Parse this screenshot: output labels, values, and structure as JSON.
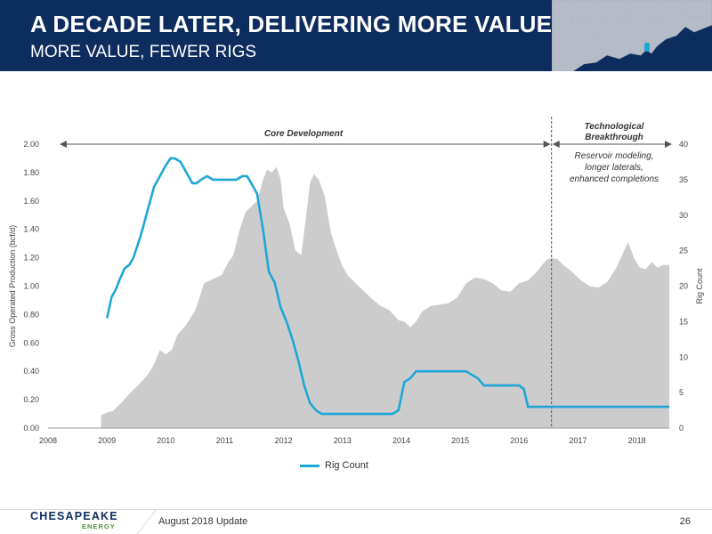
{
  "header": {
    "title": "A DECADE LATER, DELIVERING MORE VALUE",
    "subtitle": "MORE VALUE, FEWER RIGS"
  },
  "colors": {
    "header_bg": "#0d2d5e",
    "area_fill": "#cccccc",
    "rig_line": "#1ea7d6",
    "map_land": "#c8ccd3",
    "map_marker": "#1ea7d6",
    "logo_green": "#4e8f3a"
  },
  "chart_data": {
    "type": "area+line",
    "x_axis": {
      "ticks": [
        "2008",
        "2009",
        "2010",
        "2011",
        "2012",
        "2013",
        "2014",
        "2015",
        "2016",
        "2017",
        "2018"
      ],
      "range": [
        2008.0,
        2018.55
      ]
    },
    "y_left": {
      "label": "Gross Operated Production (bcf/d)",
      "range": [
        0,
        2.0
      ],
      "ticks": [
        "0.00",
        "0.20",
        "0.40",
        "0.60",
        "0.80",
        "1.00",
        "1.20",
        "1.40",
        "1.60",
        "1.80",
        "2.00"
      ]
    },
    "y_right": {
      "label": "Rig Count",
      "range": [
        0,
        40
      ],
      "ticks": [
        "0",
        "5",
        "10",
        "15",
        "20",
        "25",
        "30",
        "35",
        "40"
      ]
    },
    "annotations": {
      "core_development": "Core Development",
      "tech_title_line1": "Technological",
      "tech_title_line2": "Breakthrough",
      "tech_note_line1": "Reservoir modeling,",
      "tech_note_line2": "longer laterals,",
      "tech_note_line3": "enhanced completions",
      "divider_x": 2016.55
    },
    "legend": "Rig Count",
    "series": [
      {
        "axis": "left",
        "kind": "area",
        "x": [
          2008.9,
          2009.0,
          2009.1,
          2009.25,
          2009.4,
          2009.55,
          2009.7,
          2009.8,
          2009.9,
          2010.0,
          2010.1,
          2010.2,
          2010.35,
          2010.5,
          2010.65,
          2010.8,
          2010.95,
          2011.05,
          2011.15,
          2011.25,
          2011.35,
          2011.45,
          2011.55,
          2011.65,
          2011.72,
          2011.8,
          2011.88,
          2011.95,
          2012.0,
          2012.1,
          2012.2,
          2012.3,
          2012.4,
          2012.45,
          2012.52,
          2012.6,
          2012.7,
          2012.8,
          2012.9,
          2013.0,
          2013.1,
          2013.2,
          2013.35,
          2013.5,
          2013.65,
          2013.8,
          2013.95,
          2014.05,
          2014.15,
          2014.25,
          2014.35,
          2014.5,
          2014.65,
          2014.8,
          2014.95,
          2015.1,
          2015.25,
          2015.4,
          2015.55,
          2015.7,
          2015.85,
          2016.0,
          2016.15,
          2016.3,
          2016.45,
          2016.55,
          2016.65,
          2016.75,
          2016.9,
          2017.05,
          2017.2,
          2017.35,
          2017.5,
          2017.65,
          2017.75,
          2017.85,
          2017.95,
          2018.05,
          2018.15,
          2018.25,
          2018.35,
          2018.45,
          2018.55
        ],
        "values": [
          0.09,
          0.11,
          0.12,
          0.18,
          0.25,
          0.31,
          0.38,
          0.45,
          0.55,
          0.52,
          0.55,
          0.66,
          0.73,
          0.83,
          1.02,
          1.05,
          1.08,
          1.16,
          1.22,
          1.39,
          1.52,
          1.56,
          1.6,
          1.75,
          1.82,
          1.8,
          1.84,
          1.75,
          1.55,
          1.44,
          1.25,
          1.22,
          1.55,
          1.73,
          1.79,
          1.75,
          1.63,
          1.38,
          1.25,
          1.14,
          1.07,
          1.03,
          0.97,
          0.91,
          0.86,
          0.83,
          0.76,
          0.75,
          0.71,
          0.75,
          0.82,
          0.86,
          0.87,
          0.88,
          0.92,
          1.02,
          1.06,
          1.05,
          1.02,
          0.97,
          0.96,
          1.02,
          1.04,
          1.1,
          1.18,
          1.2,
          1.19,
          1.15,
          1.1,
          1.04,
          1.0,
          0.99,
          1.03,
          1.13,
          1.22,
          1.31,
          1.2,
          1.13,
          1.12,
          1.17,
          1.13,
          1.15,
          1.15
        ]
      },
      {
        "name": "Rig Count",
        "axis": "right",
        "kind": "line",
        "x": [
          2009.0,
          2009.08,
          2009.15,
          2009.22,
          2009.3,
          2009.38,
          2009.45,
          2009.55,
          2009.62,
          2009.7,
          2009.8,
          2009.9,
          2010.0,
          2010.08,
          2010.15,
          2010.25,
          2010.35,
          2010.45,
          2010.52,
          2010.6,
          2010.7,
          2010.8,
          2010.9,
          2011.0,
          2011.1,
          2011.2,
          2011.3,
          2011.38,
          2011.45,
          2011.55,
          2011.65,
          2011.75,
          2011.85,
          2011.95,
          2012.05,
          2012.15,
          2012.25,
          2012.35,
          2012.45,
          2012.55,
          2012.65,
          2013.0,
          2013.5,
          2013.85,
          2013.95,
          2014.05,
          2014.15,
          2014.25,
          2014.5,
          2014.8,
          2015.1,
          2015.2,
          2015.3,
          2015.4,
          2015.7,
          2016.0,
          2016.08,
          2016.15,
          2016.4,
          2016.55,
          2017.0,
          2017.5,
          2018.0,
          2018.55
        ],
        "values": [
          15.5,
          18.5,
          19.5,
          21.0,
          22.5,
          23.0,
          24.0,
          26.5,
          28.5,
          31.0,
          34.0,
          35.5,
          37.0,
          38.0,
          38.0,
          37.5,
          36.0,
          34.5,
          34.5,
          35.0,
          35.5,
          35.0,
          35.0,
          35.0,
          35.0,
          35.0,
          35.5,
          35.5,
          34.5,
          33.0,
          28.0,
          22.0,
          20.5,
          17.0,
          15.0,
          12.5,
          9.5,
          6.0,
          3.5,
          2.5,
          2.0,
          2.0,
          2.0,
          2.0,
          2.5,
          6.5,
          7.0,
          8.0,
          8.0,
          8.0,
          8.0,
          7.5,
          7.0,
          6.0,
          6.0,
          6.0,
          5.5,
          3.0,
          3.0,
          3.0,
          3.0,
          3.0,
          3.0,
          3.0
        ]
      }
    ]
  },
  "footer": {
    "logo_main": "CHESAPEAKE",
    "logo_sub": "ENERGY",
    "text": "August 2018 Update",
    "page": "26"
  }
}
